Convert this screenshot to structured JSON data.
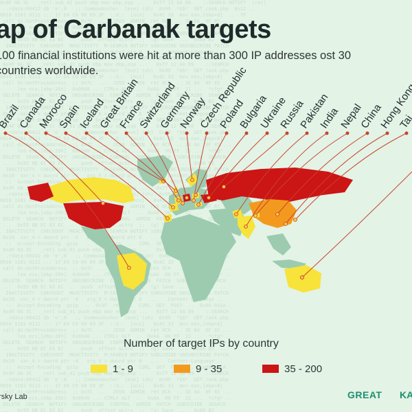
{
  "title": "ap of Carbanak targets",
  "subtitle": "100 financial institutions were hit at more than 300 IP addresses ost 30 countries worldwide.",
  "legend": {
    "title": "Number of target IPs by country",
    "items": [
      {
        "label": "1 - 9",
        "color": "#f7e33a"
      },
      {
        "label": "9 - 35",
        "color": "#f39a1e"
      },
      {
        "label": "35 - 200",
        "color": "#cc1515"
      }
    ]
  },
  "credit": "ersky Lab",
  "logos": {
    "great": "GREAT",
    "kaspersky": "KA"
  },
  "colors": {
    "land": "#9ccbb0",
    "line": "#c9432c",
    "dot": "#c9432c"
  },
  "countries": [
    {
      "name": "Brazil",
      "level": "1-9"
    },
    {
      "name": "Canada",
      "level": "1-9"
    },
    {
      "name": "Morocco",
      "level": "1-9"
    },
    {
      "name": "Spain",
      "level": "1-9"
    },
    {
      "name": "Iceland",
      "level": "1-9"
    },
    {
      "name": "Great Britain",
      "level": "1-9"
    },
    {
      "name": "France",
      "level": "1-9"
    },
    {
      "name": "Switzerland",
      "level": "1-9"
    },
    {
      "name": "Germany",
      "level": "35-200"
    },
    {
      "name": "Norway",
      "level": "1-9"
    },
    {
      "name": "Czech Republic",
      "level": "1-9"
    },
    {
      "name": "Poland",
      "level": "1-9"
    },
    {
      "name": "Bulgaria",
      "level": "1-9"
    },
    {
      "name": "Ukraine",
      "level": "35-200"
    },
    {
      "name": "Russia",
      "level": "35-200"
    },
    {
      "name": "Pakistan",
      "level": "1-9"
    },
    {
      "name": "India",
      "level": "1-9"
    },
    {
      "name": "Nepal",
      "level": "1-9"
    },
    {
      "name": "China",
      "level": "9-35"
    },
    {
      "name": "Hong Kong",
      "level": "1-9"
    },
    {
      "name": "Tai",
      "level": "1-9"
    }
  ],
  "extra_countries": [
    {
      "name": "USA",
      "level": "35-200"
    },
    {
      "name": "Australia",
      "level": "1-9"
    }
  ]
}
